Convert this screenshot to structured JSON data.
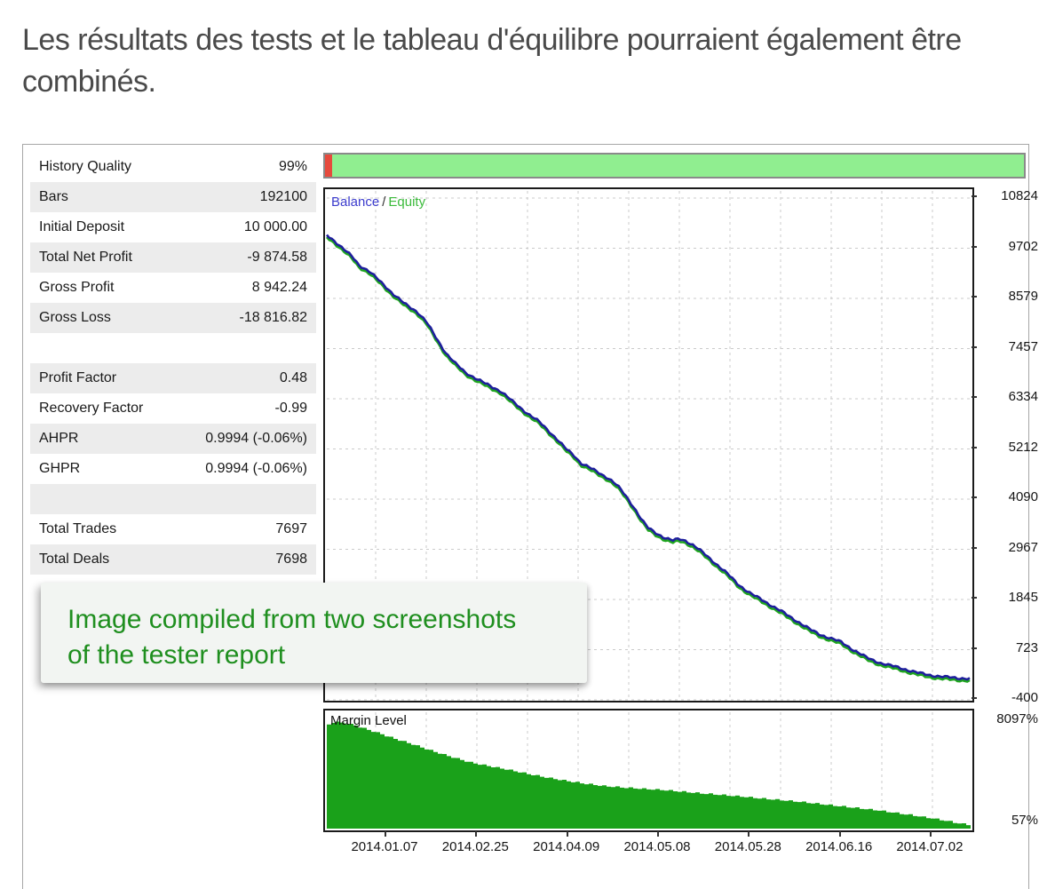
{
  "page": {
    "heading": "Les résultats des tests et le tableau d'équilibre pourraient également être combinés."
  },
  "report": {
    "stats": [
      {
        "label": "History Quality",
        "value": "99%"
      },
      {
        "label": "Bars",
        "value": "192100"
      },
      {
        "label": "Initial Deposit",
        "value": "10 000.00"
      },
      {
        "label": "Total Net Profit",
        "value": "-9 874.58"
      },
      {
        "label": "Gross Profit",
        "value": "8 942.24"
      },
      {
        "label": "Gross Loss",
        "value": "-18 816.82"
      },
      {
        "label": "",
        "value": ""
      },
      {
        "label": "Profit Factor",
        "value": "0.48"
      },
      {
        "label": "Recovery Factor",
        "value": "-0.99"
      },
      {
        "label": "AHPR",
        "value": "0.9994 (-0.06%)"
      },
      {
        "label": "GHPR",
        "value": "0.9994 (-0.06%)"
      },
      {
        "label": "",
        "value": ""
      },
      {
        "label": "Total Trades",
        "value": "7697"
      },
      {
        "label": "Total Deals",
        "value": "7698"
      }
    ],
    "progress": {
      "red_color": "#e64a3d",
      "green_color": "#90ee90"
    }
  },
  "annotation": {
    "lines": [
      "Image compiled from two screenshots",
      "of the tester report"
    ],
    "text_color": "#1f8f1f"
  },
  "chart_data": [
    {
      "type": "line",
      "title": "Balance / Equity",
      "legend": [
        {
          "name": "Balance",
          "color": "#3c3ccd"
        },
        {
          "name": "Equity",
          "color": "#3cbb3c"
        }
      ],
      "legend_separator": "/",
      "ylim": [
        -400,
        10824
      ],
      "yticks": [
        10824,
        9702,
        8579,
        7457,
        6334,
        5212,
        4090,
        2967,
        1845,
        723,
        -400
      ],
      "grid": true,
      "series": [
        {
          "name": "Equity",
          "color": "#1fa51f",
          "dy": 2.5
        },
        {
          "name": "Balance",
          "color": "#1e1e9c",
          "dy": 0
        }
      ],
      "points": [
        [
          0.0,
          10000
        ],
        [
          0.01,
          9890
        ],
        [
          0.025,
          9690
        ],
        [
          0.04,
          9510
        ],
        [
          0.05,
          9330
        ],
        [
          0.065,
          9190
        ],
        [
          0.08,
          9000
        ],
        [
          0.09,
          8870
        ],
        [
          0.105,
          8650
        ],
        [
          0.12,
          8470
        ],
        [
          0.14,
          8290
        ],
        [
          0.155,
          8050
        ],
        [
          0.17,
          7700
        ],
        [
          0.185,
          7360
        ],
        [
          0.2,
          7120
        ],
        [
          0.215,
          6930
        ],
        [
          0.235,
          6760
        ],
        [
          0.25,
          6650
        ],
        [
          0.27,
          6510
        ],
        [
          0.29,
          6260
        ],
        [
          0.31,
          6030
        ],
        [
          0.33,
          5820
        ],
        [
          0.345,
          5620
        ],
        [
          0.36,
          5400
        ],
        [
          0.372,
          5210
        ],
        [
          0.385,
          5060
        ],
        [
          0.395,
          4900
        ],
        [
          0.408,
          4800
        ],
        [
          0.42,
          4700
        ],
        [
          0.44,
          4540
        ],
        [
          0.452,
          4390
        ],
        [
          0.465,
          4160
        ],
        [
          0.478,
          3900
        ],
        [
          0.49,
          3620
        ],
        [
          0.5,
          3440
        ],
        [
          0.512,
          3330
        ],
        [
          0.525,
          3230
        ],
        [
          0.538,
          3160
        ],
        [
          0.548,
          3200
        ],
        [
          0.558,
          3160
        ],
        [
          0.57,
          3060
        ],
        [
          0.585,
          2890
        ],
        [
          0.6,
          2710
        ],
        [
          0.62,
          2460
        ],
        [
          0.64,
          2180
        ],
        [
          0.66,
          1970
        ],
        [
          0.68,
          1810
        ],
        [
          0.7,
          1640
        ],
        [
          0.72,
          1460
        ],
        [
          0.737,
          1310
        ],
        [
          0.752,
          1170
        ],
        [
          0.767,
          1060
        ],
        [
          0.785,
          970
        ],
        [
          0.8,
          890
        ],
        [
          0.82,
          710
        ],
        [
          0.84,
          540
        ],
        [
          0.86,
          430
        ],
        [
          0.878,
          360
        ],
        [
          0.893,
          310
        ],
        [
          0.905,
          260
        ],
        [
          0.92,
          200
        ],
        [
          0.94,
          150
        ],
        [
          0.96,
          110
        ],
        [
          0.98,
          90
        ],
        [
          1.0,
          70
        ]
      ],
      "x_dates": [
        "2014.01.07",
        "2014.02.25",
        "2014.04.09",
        "2014.05.08",
        "2014.05.28",
        "2014.06.16",
        "2014.07.02"
      ]
    },
    {
      "type": "area",
      "title": "Margin Level",
      "color": "#1aa11a",
      "ylim": [
        57,
        8097
      ],
      "ytick_labels": [
        "8097%",
        "57%"
      ],
      "points": [
        [
          0.0,
          7350
        ],
        [
          0.008,
          7530
        ],
        [
          0.02,
          7500
        ],
        [
          0.04,
          7300
        ],
        [
          0.06,
          7000
        ],
        [
          0.08,
          6700
        ],
        [
          0.1,
          6380
        ],
        [
          0.13,
          5950
        ],
        [
          0.16,
          5480
        ],
        [
          0.19,
          5050
        ],
        [
          0.22,
          4650
        ],
        [
          0.25,
          4380
        ],
        [
          0.28,
          4120
        ],
        [
          0.31,
          3830
        ],
        [
          0.34,
          3560
        ],
        [
          0.37,
          3330
        ],
        [
          0.4,
          3120
        ],
        [
          0.43,
          2960
        ],
        [
          0.46,
          2850
        ],
        [
          0.49,
          2760
        ],
        [
          0.52,
          2680
        ],
        [
          0.55,
          2560
        ],
        [
          0.58,
          2440
        ],
        [
          0.61,
          2330
        ],
        [
          0.64,
          2220
        ],
        [
          0.67,
          2090
        ],
        [
          0.7,
          1970
        ],
        [
          0.73,
          1850
        ],
        [
          0.76,
          1700
        ],
        [
          0.79,
          1550
        ],
        [
          0.82,
          1400
        ],
        [
          0.85,
          1250
        ],
        [
          0.88,
          1060
        ],
        [
          0.91,
          860
        ],
        [
          0.94,
          640
        ],
        [
          0.96,
          480
        ],
        [
          0.98,
          300
        ],
        [
          0.995,
          200
        ],
        [
          1.0,
          170
        ]
      ],
      "x_dates": [
        "2014.01.07",
        "2014.02.25",
        "2014.04.09",
        "2014.05.08",
        "2014.05.28",
        "2014.06.16",
        "2014.07.02"
      ]
    }
  ]
}
